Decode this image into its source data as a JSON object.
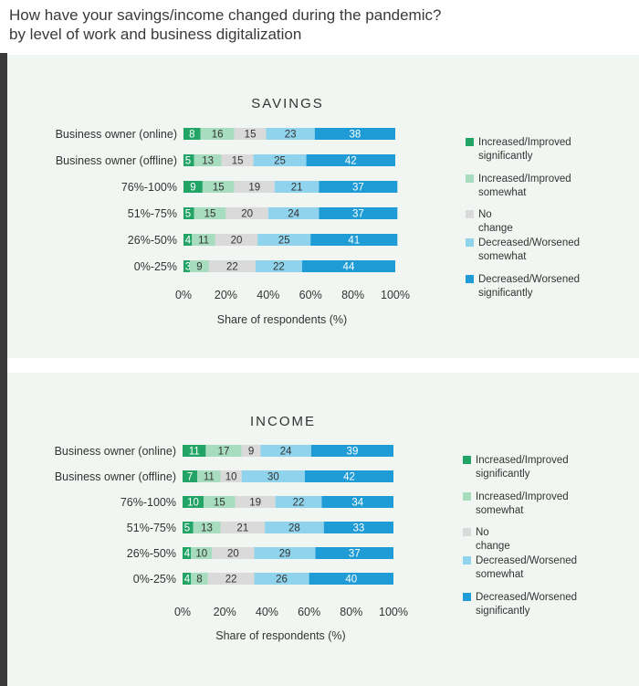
{
  "title_line1": "How have your savings/income changed during the pandemic?",
  "title_line2": "by level of work and business digitalization",
  "colors": {
    "inc_sig": "#21a465",
    "inc_some": "#a7dcbf",
    "no_change": "#dadada",
    "dec_some": "#8fd3ec",
    "dec_sig": "#1f9cd6"
  },
  "chart_data": [
    {
      "type": "bar",
      "orientation": "horizontal",
      "stacked": true,
      "title": "SAVINGS",
      "xlabel": "Share of respondents (%)",
      "xlim": [
        0,
        100
      ],
      "xticks": [
        "0%",
        "20%",
        "40%",
        "60%",
        "80%",
        "100%"
      ],
      "categories": [
        "Business owner (online)",
        "Business owner (offline)",
        "76%-100%",
        "51%-75%",
        "26%-50%",
        "0%-25%"
      ],
      "series": [
        {
          "name": "Increased/Improved significantly",
          "values": [
            8,
            5,
            9,
            5,
            4,
            3
          ]
        },
        {
          "name": "Increased/Improved somewhat",
          "values": [
            16,
            13,
            15,
            15,
            11,
            9
          ]
        },
        {
          "name": "No change",
          "values": [
            15,
            15,
            19,
            20,
            20,
            22
          ]
        },
        {
          "name": "Decreased/Worsened somewhat",
          "values": [
            23,
            25,
            21,
            24,
            25,
            22
          ]
        },
        {
          "name": "Decreased/Worsened significantly",
          "values": [
            38,
            42,
            37,
            37,
            41,
            44
          ]
        }
      ],
      "legend": [
        "Increased/Improved significantly",
        "Increased/Improved somewhat",
        "No change",
        "Decreased/Worsened somewhat",
        "Decreased/Worsened significantly"
      ],
      "legend_position": "right"
    },
    {
      "type": "bar",
      "orientation": "horizontal",
      "stacked": true,
      "title": "INCOME",
      "xlabel": "Share of respondents (%)",
      "xlim": [
        0,
        100
      ],
      "xticks": [
        "0%",
        "20%",
        "40%",
        "60%",
        "80%",
        "100%"
      ],
      "categories": [
        "Business owner (online)",
        "Business owner (offline)",
        "76%-100%",
        "51%-75%",
        "26%-50%",
        "0%-25%"
      ],
      "series": [
        {
          "name": "Increased/Improved significantly",
          "values": [
            11,
            7,
            10,
            5,
            4,
            4
          ]
        },
        {
          "name": "Increased/Improved somewhat",
          "values": [
            17,
            11,
            15,
            13,
            10,
            8
          ]
        },
        {
          "name": "No change",
          "values": [
            9,
            10,
            19,
            21,
            20,
            22
          ]
        },
        {
          "name": "Decreased/Worsened somewhat",
          "values": [
            24,
            30,
            22,
            28,
            29,
            26
          ]
        },
        {
          "name": "Decreased/Worsened significantly",
          "values": [
            39,
            42,
            34,
            33,
            37,
            40
          ]
        }
      ],
      "legend": [
        "Increased/Improved significantly",
        "Increased/Improved somewhat",
        "No change",
        "Decreased/Worsened somewhat",
        "Decreased/Worsened significantly"
      ],
      "legend_position": "right"
    }
  ]
}
